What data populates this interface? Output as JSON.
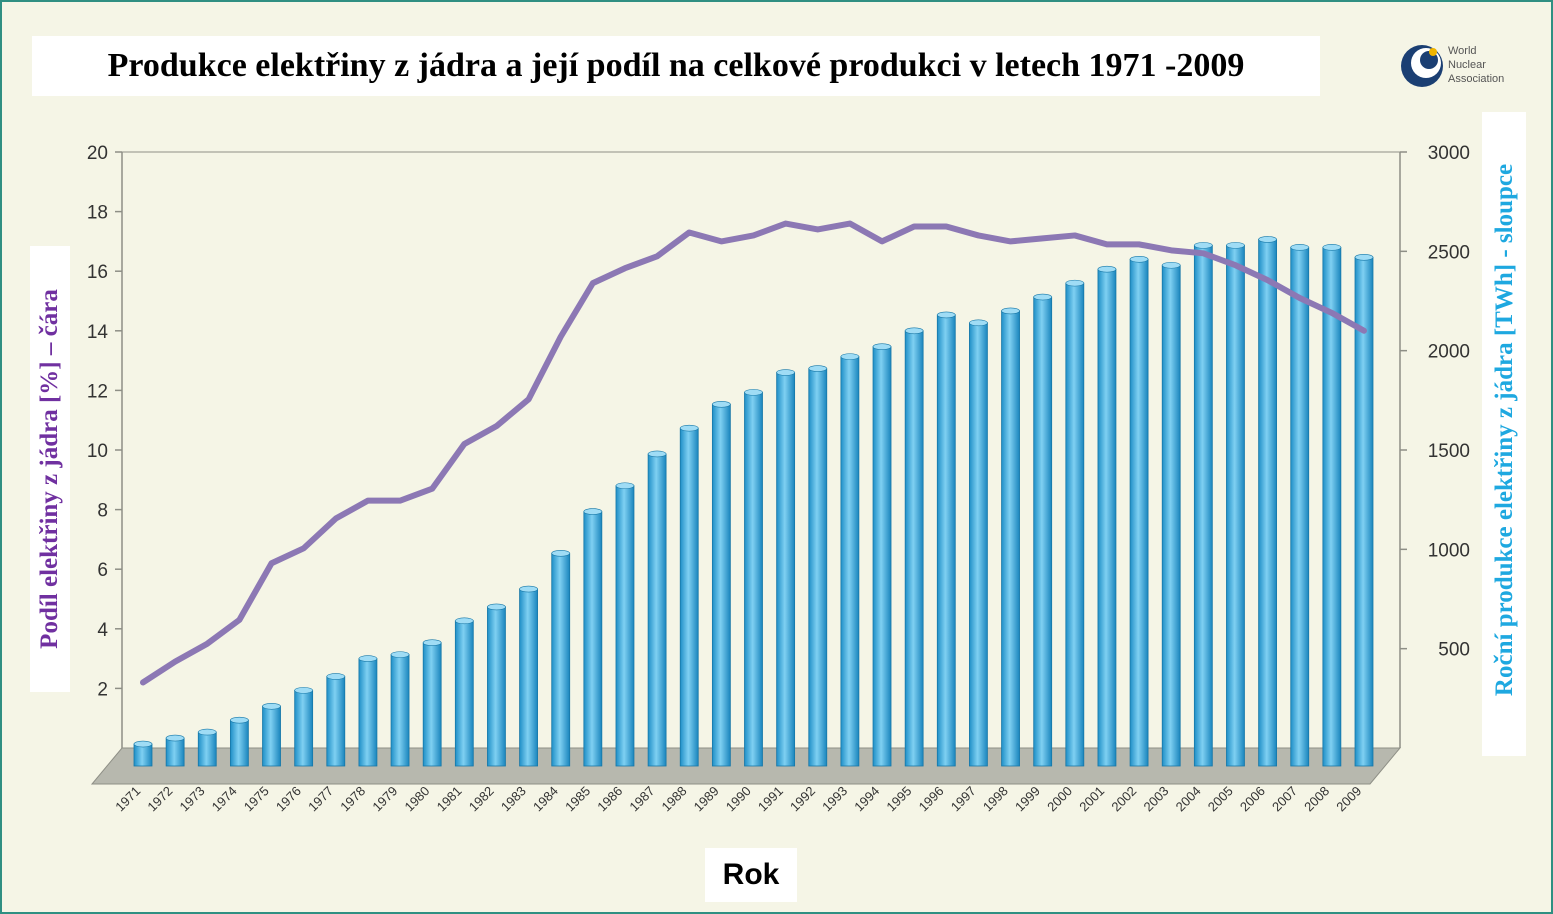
{
  "title": "Produkce elektřiny z jádra a její podíl na celkové produkci v letech 1971 -2009",
  "logo_text": [
    "World",
    "Nuclear",
    "Association"
  ],
  "chart_data": {
    "type": "bar",
    "title": "Produkce elektřiny z jádra a její podíl na celkové produkci v letech 1971 -2009",
    "xlabel": "Rok",
    "ylabel_left": "Podíl elektřiny z jádra [%] – čára",
    "ylabel_right": "Roční produkce elektřiny z jádra [TWh] - sloupce",
    "categories": [
      "1971",
      "1972",
      "1973",
      "1974",
      "1975",
      "1976",
      "1977",
      "1978",
      "1979",
      "1980",
      "1981",
      "1982",
      "1983",
      "1984",
      "1985",
      "1986",
      "1987",
      "1988",
      "1989",
      "1990",
      "1991",
      "1992",
      "1993",
      "1994",
      "1995",
      "1996",
      "1997",
      "1998",
      "1999",
      "2000",
      "2001",
      "2002",
      "2003",
      "2004",
      "2005",
      "2006",
      "2007",
      "2008",
      "2009"
    ],
    "y_left_ticks": [
      2,
      4,
      6,
      8,
      10,
      12,
      14,
      16,
      18,
      20
    ],
    "y_left_range": [
      0,
      20
    ],
    "y_right_ticks": [
      500,
      1000,
      1500,
      2000,
      2500,
      3000
    ],
    "y_right_range": [
      0,
      3000
    ],
    "grid": false,
    "series": [
      {
        "name": "Roční produkce elektřiny z jádra [TWh] - sloupce",
        "type": "bar",
        "axis": "right",
        "color": "#3aaee0",
        "values": [
          20,
          50,
          80,
          140,
          210,
          290,
          360,
          450,
          470,
          530,
          640,
          710,
          800,
          980,
          1190,
          1320,
          1480,
          1610,
          1730,
          1790,
          1890,
          1910,
          1970,
          2020,
          2100,
          2180,
          2140,
          2200,
          2270,
          2340,
          2410,
          2460,
          2430,
          2530,
          2530,
          2560,
          2520,
          2520,
          2470
        ]
      },
      {
        "name": "Podíl elektřiny z jádra [%] – čára",
        "type": "line",
        "axis": "left",
        "color": "#8c78b4",
        "values": [
          2.2,
          2.9,
          3.5,
          4.3,
          6.2,
          6.7,
          7.7,
          8.3,
          8.3,
          8.7,
          10.2,
          10.8,
          11.7,
          13.8,
          15.6,
          16.1,
          16.5,
          17.3,
          17.0,
          17.2,
          17.6,
          17.4,
          17.6,
          17.0,
          17.5,
          17.5,
          17.2,
          17.0,
          17.1,
          17.2,
          16.9,
          16.9,
          16.7,
          16.6,
          16.2,
          15.7,
          15.1,
          14.6,
          14.0
        ]
      }
    ]
  }
}
